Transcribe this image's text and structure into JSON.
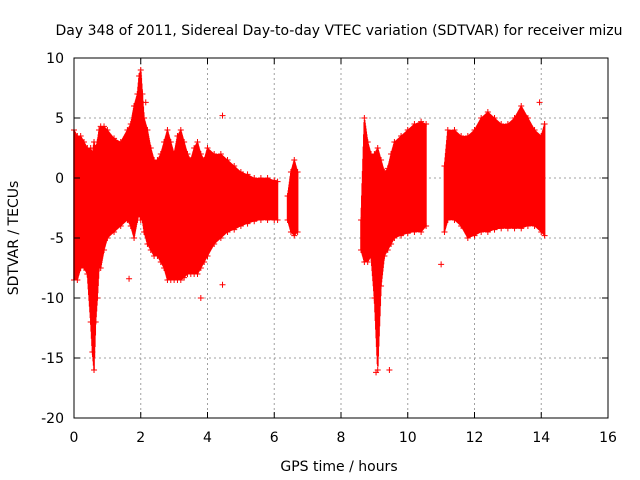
{
  "chart_data": {
    "type": "scatter",
    "title": "Day 348 of 2011, Sidereal Day-to-day VTEC variation (SDTVAR) for receiver mizu",
    "xlabel": "GPS time / hours",
    "ylabel": "SDTVAR / TECUs",
    "xlim": [
      0,
      16
    ],
    "ylim": [
      -20,
      10
    ],
    "xticks": [
      0,
      2,
      4,
      6,
      8,
      10,
      12,
      14,
      16
    ],
    "yticks": [
      10,
      5,
      0,
      -5,
      -10,
      -15,
      -20
    ],
    "grid": true,
    "marker": "+",
    "series_color": "#ff0000",
    "envelope": {
      "x": [
        0.0,
        0.1,
        0.2,
        0.3,
        0.4,
        0.5,
        0.55,
        0.6,
        0.65,
        0.7,
        0.75,
        0.8,
        0.9,
        1.0,
        1.2,
        1.4,
        1.6,
        1.7,
        1.8,
        1.9,
        1.95,
        2.0,
        2.05,
        2.1,
        2.2,
        2.3,
        2.4,
        2.5,
        2.6,
        2.7,
        2.8,
        2.9,
        3.0,
        3.1,
        3.2,
        3.3,
        3.4,
        3.5,
        3.6,
        3.7,
        3.8,
        3.9,
        4.0,
        4.2,
        4.4,
        4.6,
        4.8,
        5.0,
        5.2,
        5.4,
        5.6,
        5.8,
        6.0,
        6.1
      ],
      "high": [
        4.0,
        3.5,
        3.5,
        3.0,
        2.5,
        2.5,
        2.0,
        3.0,
        2.5,
        3.0,
        4.0,
        4.3,
        4.3,
        4.0,
        3.3,
        3.0,
        4.0,
        4.5,
        6.0,
        7.0,
        8.5,
        9.0,
        7.0,
        5.0,
        4.0,
        2.5,
        1.5,
        1.5,
        2.0,
        3.0,
        4.0,
        3.0,
        2.0,
        3.5,
        4.0,
        3.0,
        2.0,
        1.5,
        2.5,
        3.0,
        2.0,
        1.5,
        2.5,
        2.0,
        2.0,
        1.5,
        1.0,
        0.5,
        0.3,
        0.0,
        0.0,
        0.0,
        -0.2,
        -0.3
      ],
      "low": [
        -8.5,
        -8.5,
        -7.5,
        -7.5,
        -8.0,
        -12.0,
        -14.5,
        -16.0,
        -12.0,
        -10.0,
        -7.5,
        -7.5,
        -6.0,
        -5.0,
        -4.5,
        -4.0,
        -3.5,
        -4.0,
        -5.0,
        -3.5,
        -3.0,
        -3.5,
        -3.5,
        -4.5,
        -5.5,
        -6.0,
        -6.5,
        -6.5,
        -7.0,
        -7.5,
        -8.5,
        -8.5,
        -8.5,
        -8.5,
        -8.5,
        -8.3,
        -8.0,
        -8.0,
        -8.0,
        -8.0,
        -7.5,
        -7.0,
        -6.5,
        -5.5,
        -5.0,
        -4.5,
        -4.3,
        -4.0,
        -3.8,
        -3.6,
        -3.5,
        -3.5,
        -3.5,
        -3.5
      ]
    },
    "segments": [
      {
        "x": [
          6.4,
          6.5,
          6.6,
          6.7
        ],
        "high": [
          -1.5,
          0.5,
          1.5,
          0.5
        ],
        "low": [
          -3.5,
          -4.5,
          -4.8,
          -4.5
        ]
      },
      {
        "x": [
          8.6,
          8.7,
          8.8,
          8.9,
          9.0,
          9.1,
          9.2,
          9.3,
          9.4,
          9.5,
          9.6,
          9.8,
          10.0,
          10.2,
          10.4,
          10.55
        ],
        "high": [
          -3.5,
          5.0,
          3.0,
          2.0,
          2.0,
          2.5,
          1.5,
          0.5,
          0.8,
          2.0,
          3.0,
          3.5,
          4.0,
          4.5,
          4.7,
          4.5
        ],
        "low": [
          -6.0,
          -7.0,
          -7.0,
          -6.5,
          -10.0,
          -16.0,
          -9.0,
          -6.5,
          -6.0,
          -5.5,
          -5.0,
          -4.8,
          -4.6,
          -4.5,
          -4.5,
          -4.0
        ]
      },
      {
        "x": [
          11.1,
          11.2,
          11.4,
          11.6,
          11.8,
          12.0,
          12.2,
          12.4,
          12.6,
          12.8,
          13.0,
          13.2,
          13.4,
          13.6,
          13.8,
          14.0,
          14.1
        ],
        "high": [
          1.0,
          4.0,
          4.0,
          3.5,
          3.5,
          4.0,
          5.0,
          5.5,
          5.0,
          4.5,
          4.5,
          5.0,
          6.0,
          5.0,
          4.0,
          3.5,
          4.5
        ],
        "low": [
          -4.5,
          -3.5,
          -3.5,
          -4.0,
          -5.0,
          -4.8,
          -4.5,
          -4.5,
          -4.3,
          -4.2,
          -4.2,
          -4.2,
          -4.2,
          -4.0,
          -4.0,
          -4.5,
          -4.8
        ]
      }
    ],
    "outliers": [
      {
        "x": 1.65,
        "y": -8.4
      },
      {
        "x": 3.8,
        "y": -10.0
      },
      {
        "x": 4.45,
        "y": 5.2
      },
      {
        "x": 4.45,
        "y": -8.9
      },
      {
        "x": 0.6,
        "y": -16.0
      },
      {
        "x": 11.0,
        "y": -7.2
      },
      {
        "x": 9.45,
        "y": -16.0
      },
      {
        "x": 9.05,
        "y": -16.2
      },
      {
        "x": 13.95,
        "y": 6.3
      },
      {
        "x": 2.15,
        "y": 6.3
      }
    ]
  }
}
